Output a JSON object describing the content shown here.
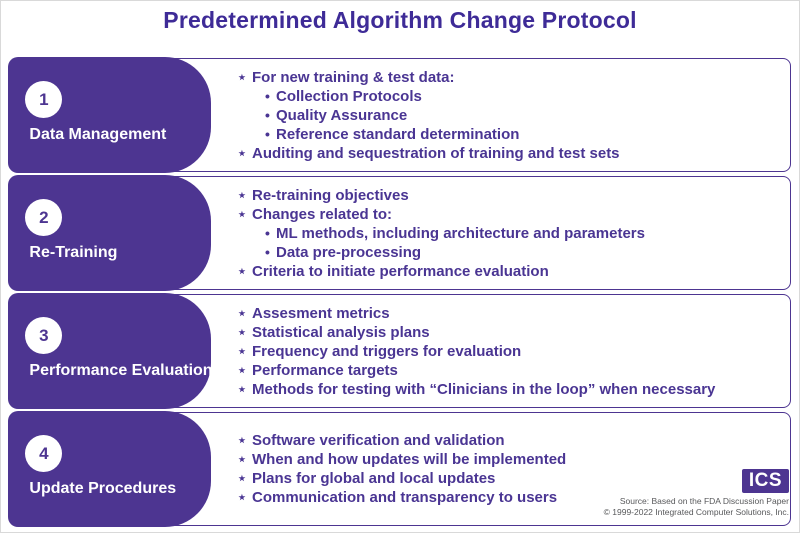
{
  "title": "Predetermined Algorithm Change Protocol",
  "colors": {
    "purple": "#4d3591",
    "title": "#3e2b97",
    "text": "#4a3593",
    "source_gray": "#58595b"
  },
  "bullets": {
    "main": "⋆",
    "sub": "•"
  },
  "sections": [
    {
      "number": "1",
      "label": "Data Management",
      "items": [
        {
          "level": 1,
          "text": "For new training & test data:"
        },
        {
          "level": 2,
          "text": "Collection Protocols"
        },
        {
          "level": 2,
          "text": "Quality Assurance"
        },
        {
          "level": 2,
          "text": "Reference standard determination"
        },
        {
          "level": 1,
          "text": "Auditing and sequestration of training and test sets"
        }
      ]
    },
    {
      "number": "2",
      "label": "Re-Training",
      "items": [
        {
          "level": 1,
          "text": "Re-training objectives"
        },
        {
          "level": 1,
          "text": "Changes related to:"
        },
        {
          "level": 2,
          "text": "ML methods, including architecture and parameters"
        },
        {
          "level": 2,
          "text": "Data pre-processing"
        },
        {
          "level": 1,
          "text": "Criteria to initiate performance evaluation"
        }
      ]
    },
    {
      "number": "3",
      "label": "Performance Evaluation",
      "items": [
        {
          "level": 1,
          "text": "Assesment metrics"
        },
        {
          "level": 1,
          "text": "Statistical analysis plans"
        },
        {
          "level": 1,
          "text": "Frequency and triggers for evaluation"
        },
        {
          "level": 1,
          "text": "Performance targets"
        },
        {
          "level": 1,
          "text": "Methods for testing with “Clinicians in the loop” when necessary"
        }
      ]
    },
    {
      "number": "4",
      "label": "Update Procedures",
      "items": [
        {
          "level": 1,
          "text": "Software verification and validation"
        },
        {
          "level": 1,
          "text": "When and how updates will be implemented"
        },
        {
          "level": 1,
          "text": "Plans for global and local updates"
        },
        {
          "level": 1,
          "text": "Communication and transparency to users"
        }
      ]
    }
  ],
  "footer": {
    "logo_text": "ICS",
    "source_line1": "Source: Based on the FDA Discussion Paper",
    "source_line2": "© 1999-2022 Integrated Computer Solutions, Inc."
  }
}
